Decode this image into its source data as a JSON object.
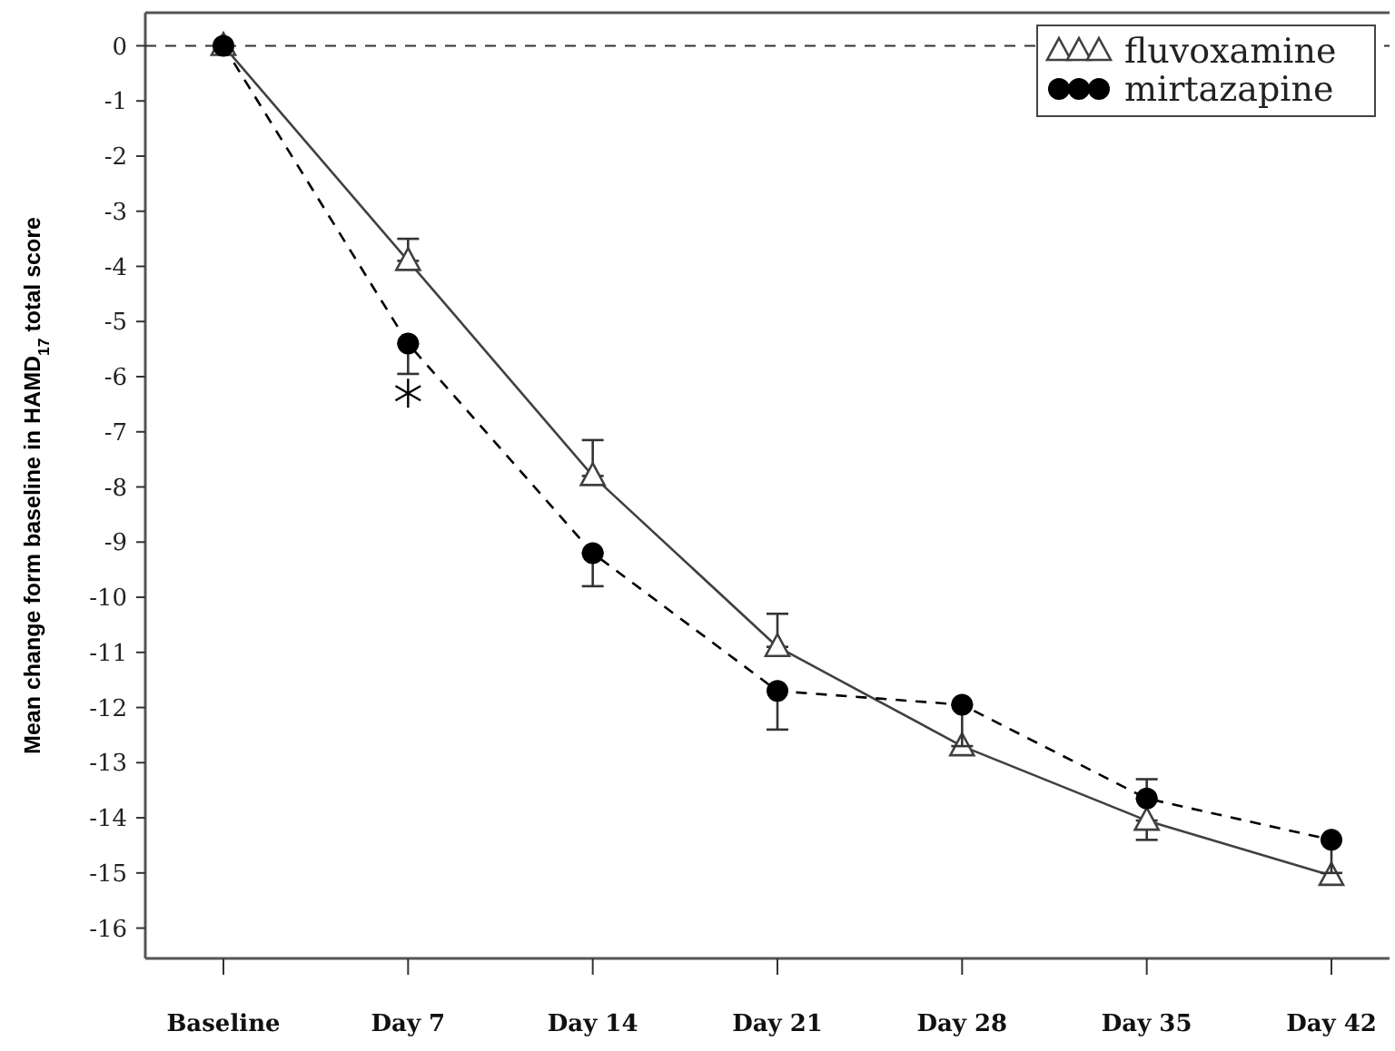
{
  "chart_data": {
    "type": "line",
    "ylabel": "Mean change form baseline in HAMD$_{17}$ total score",
    "categories": [
      "Baseline",
      "Day 7",
      "Day 14",
      "Day 21",
      "Day 28",
      "Day 35",
      "Day 42"
    ],
    "series": [
      {
        "name": "fluvoxamine",
        "color": "#404040",
        "marker": "triangle",
        "line_style": "solid",
        "values": [
          0,
          -3.9,
          -7.8,
          -10.9,
          -12.7,
          -14.05,
          -15.05
        ],
        "errors": [
          null,
          [
            -3.9,
            -3.5
          ],
          [
            -7.8,
            -7.15
          ],
          [
            -10.9,
            -10.3
          ],
          null,
          [
            -14.4,
            -14.05
          ],
          null
        ]
      },
      {
        "name": "mirtazapine",
        "color": "#000000",
        "marker": "circle",
        "line_style": "dashed",
        "values": [
          0,
          -5.4,
          -9.2,
          -11.7,
          -11.95,
          -13.65,
          -14.4
        ],
        "errors": [
          null,
          [
            -5.95,
            -5.4
          ],
          [
            -9.8,
            -9.2
          ],
          [
            -12.4,
            -11.7
          ],
          [
            -12.7,
            -11.95
          ],
          [
            -13.65,
            -13.3
          ],
          [
            -15.0,
            -14.4
          ]
        ]
      },
      {
        "type": "scatter",
        "color": "#000000",
        "marker": "cross",
        "values": [
          null,
          -6.3,
          null,
          null,
          null,
          null,
          null
        ]
      }
    ],
    "ylim": [
      -16.55,
      0.6
    ],
    "yticks": [
      0,
      -1,
      -2,
      -3,
      -4,
      -5,
      -6,
      -7,
      -8,
      -9,
      -10,
      -11,
      -12,
      -13,
      -14,
      -15,
      -16
    ],
    "ref_lines": [
      {
        "axis": "y",
        "value": 0,
        "line_style": "dashed",
        "color": "#333333"
      }
    ],
    "legend": "top right",
    "grid": false
  }
}
